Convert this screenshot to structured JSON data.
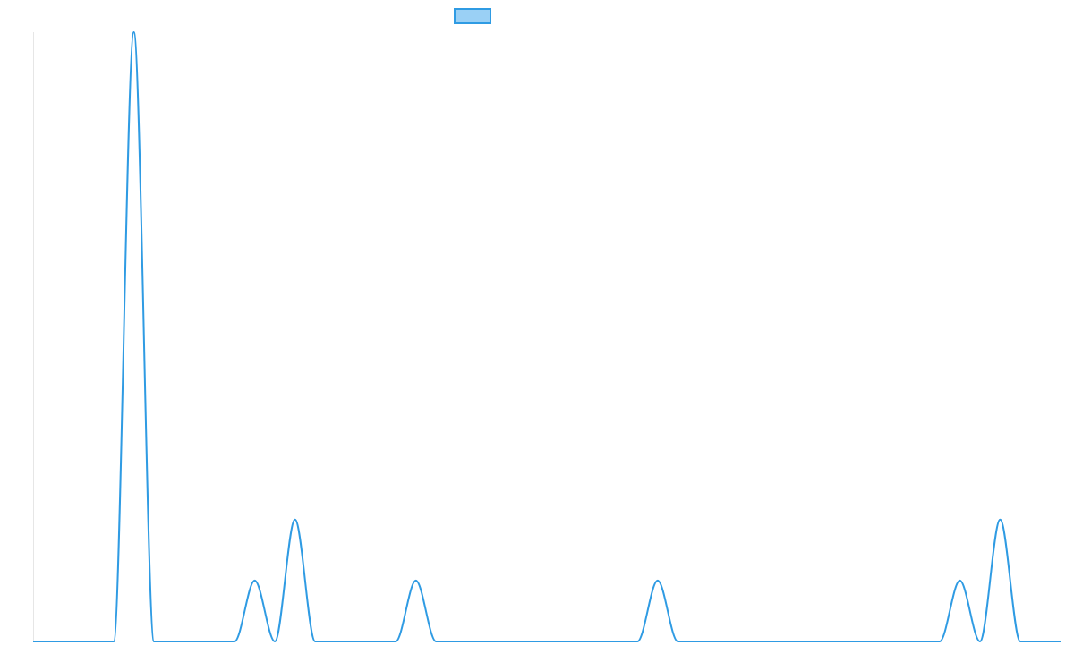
{
  "colors": {
    "series_line": "#2f9be3",
    "legend_fill": "#9ad0f5",
    "axis": "#e6e6e6",
    "background": "#ffffff"
  },
  "chart_data": {
    "type": "line",
    "title": "",
    "xlabel": "",
    "ylabel": "",
    "x_range": [
      0,
      51
    ],
    "y_range": [
      0,
      10
    ],
    "grid": false,
    "legend": {
      "placement": "top-center",
      "entries": [
        {
          "label": ""
        }
      ]
    },
    "series": [
      {
        "x": [
          0,
          1,
          2,
          3,
          4,
          5,
          6,
          7,
          8,
          9,
          10,
          11,
          12,
          13,
          14,
          15,
          16,
          17,
          18,
          19,
          20,
          21,
          22,
          23,
          24,
          25,
          26,
          27,
          28,
          29,
          30,
          31,
          32,
          33,
          34,
          35,
          36,
          37,
          38,
          39,
          40,
          41,
          42,
          43,
          44,
          45,
          46,
          47,
          48,
          49,
          50,
          51
        ],
        "values": [
          0,
          0,
          0,
          0,
          0,
          10,
          0,
          0,
          0,
          0,
          0,
          1,
          0,
          2,
          0,
          0,
          0,
          0,
          0,
          1,
          0,
          0,
          0,
          0,
          0,
          0,
          0,
          0,
          0,
          0,
          0,
          1,
          0,
          0,
          0,
          0,
          0,
          0,
          0,
          0,
          0,
          0,
          0,
          0,
          0,
          0,
          1,
          0,
          2,
          0,
          0,
          0
        ]
      }
    ]
  }
}
